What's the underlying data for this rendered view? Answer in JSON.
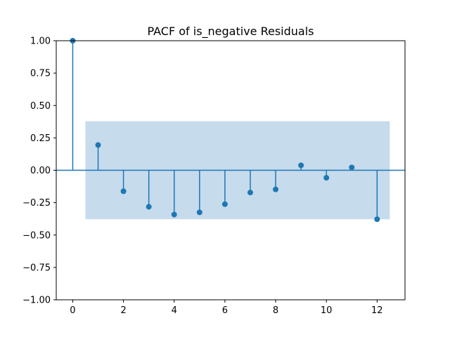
{
  "chart_data": {
    "type": "stem",
    "title": "PACF of is_negative Residuals",
    "xlabel": "",
    "ylabel": "",
    "xlim": [
      -0.65,
      13.1
    ],
    "ylim": [
      -1.0,
      1.0
    ],
    "xticks": [
      0,
      2,
      4,
      6,
      8,
      10,
      12
    ],
    "yticks": [
      -1.0,
      -0.75,
      -0.5,
      -0.25,
      0.0,
      0.25,
      0.5,
      0.75,
      1.0
    ],
    "xtick_labels": [
      "0",
      "2",
      "4",
      "6",
      "8",
      "10",
      "12"
    ],
    "ytick_labels": [
      "−1.00",
      "−0.75",
      "−0.50",
      "−0.25",
      "0.00",
      "0.25",
      "0.50",
      "0.75",
      "1.00"
    ],
    "grid": false,
    "lags": [
      0,
      1,
      2,
      3,
      4,
      5,
      6,
      7,
      8,
      9,
      10,
      11,
      12
    ],
    "values": [
      1.0,
      0.195,
      -0.162,
      -0.282,
      -0.342,
      -0.325,
      -0.262,
      -0.172,
      -0.148,
      0.038,
      -0.058,
      0.022,
      -0.378
    ],
    "confidence_band": {
      "x_range": [
        0.5,
        12.5
      ],
      "lower": -0.378,
      "upper": 0.378
    },
    "colors": {
      "stem": "#1f77b4",
      "band": "#c6dbec",
      "axis": "#000000"
    }
  }
}
